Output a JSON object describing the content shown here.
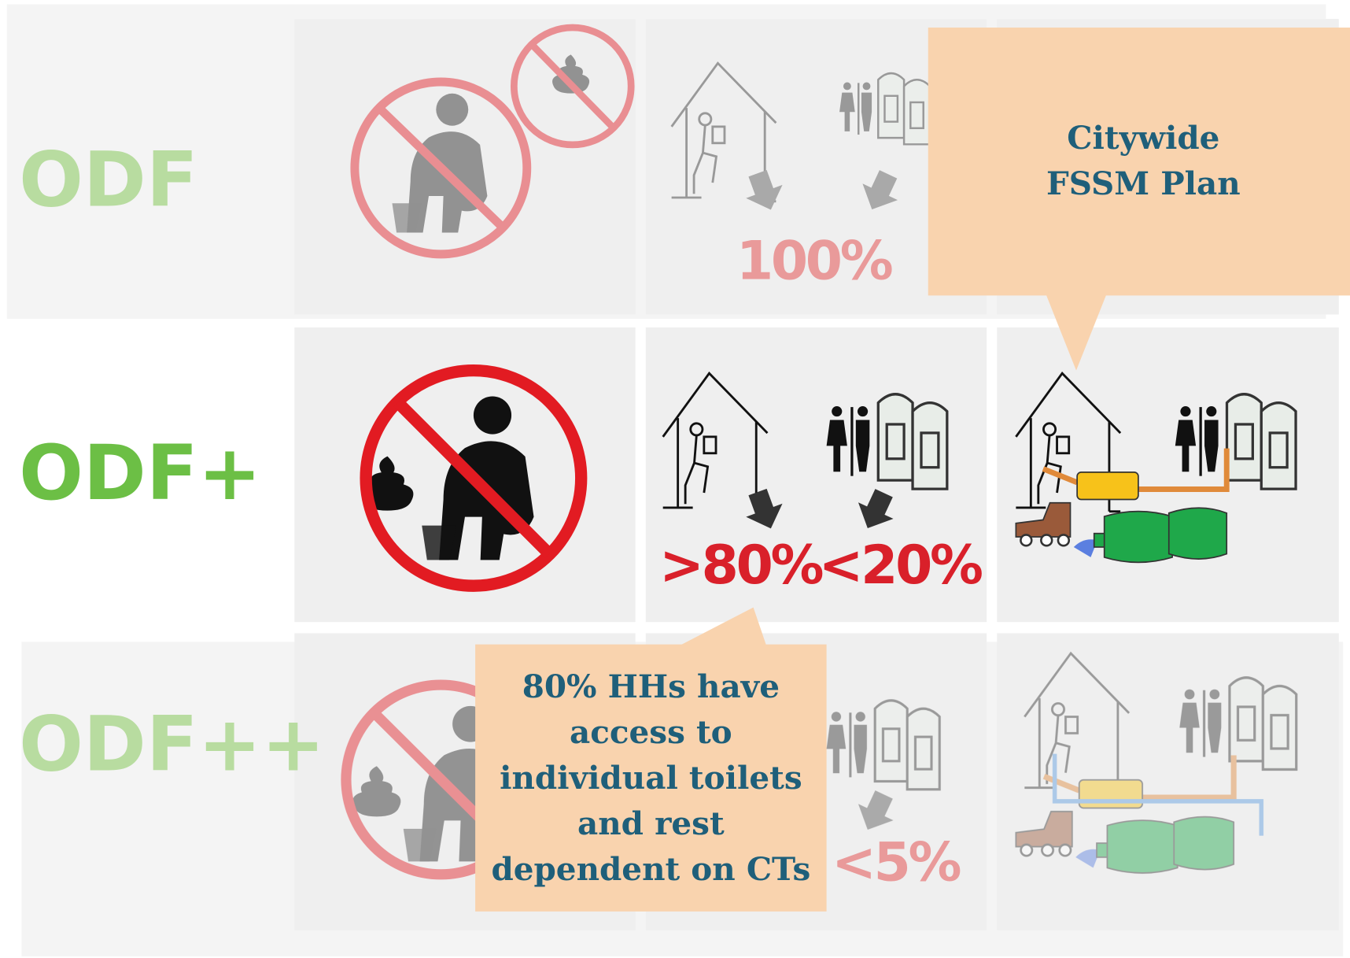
{
  "rows": [
    {
      "label": "ODF",
      "figures": [
        "100%"
      ]
    },
    {
      "label": "ODF+",
      "figures": [
        ">80%",
        "<20%"
      ]
    },
    {
      "label": "ODF++",
      "figures": [
        "<5%"
      ]
    }
  ],
  "callouts": [
    {
      "lines": [
        "Citywide",
        "FSSM Plan"
      ]
    },
    {
      "lines": [
        "80% HHs have",
        "access to",
        "individual toilets",
        "and rest",
        "dependent on CTs"
      ]
    }
  ]
}
